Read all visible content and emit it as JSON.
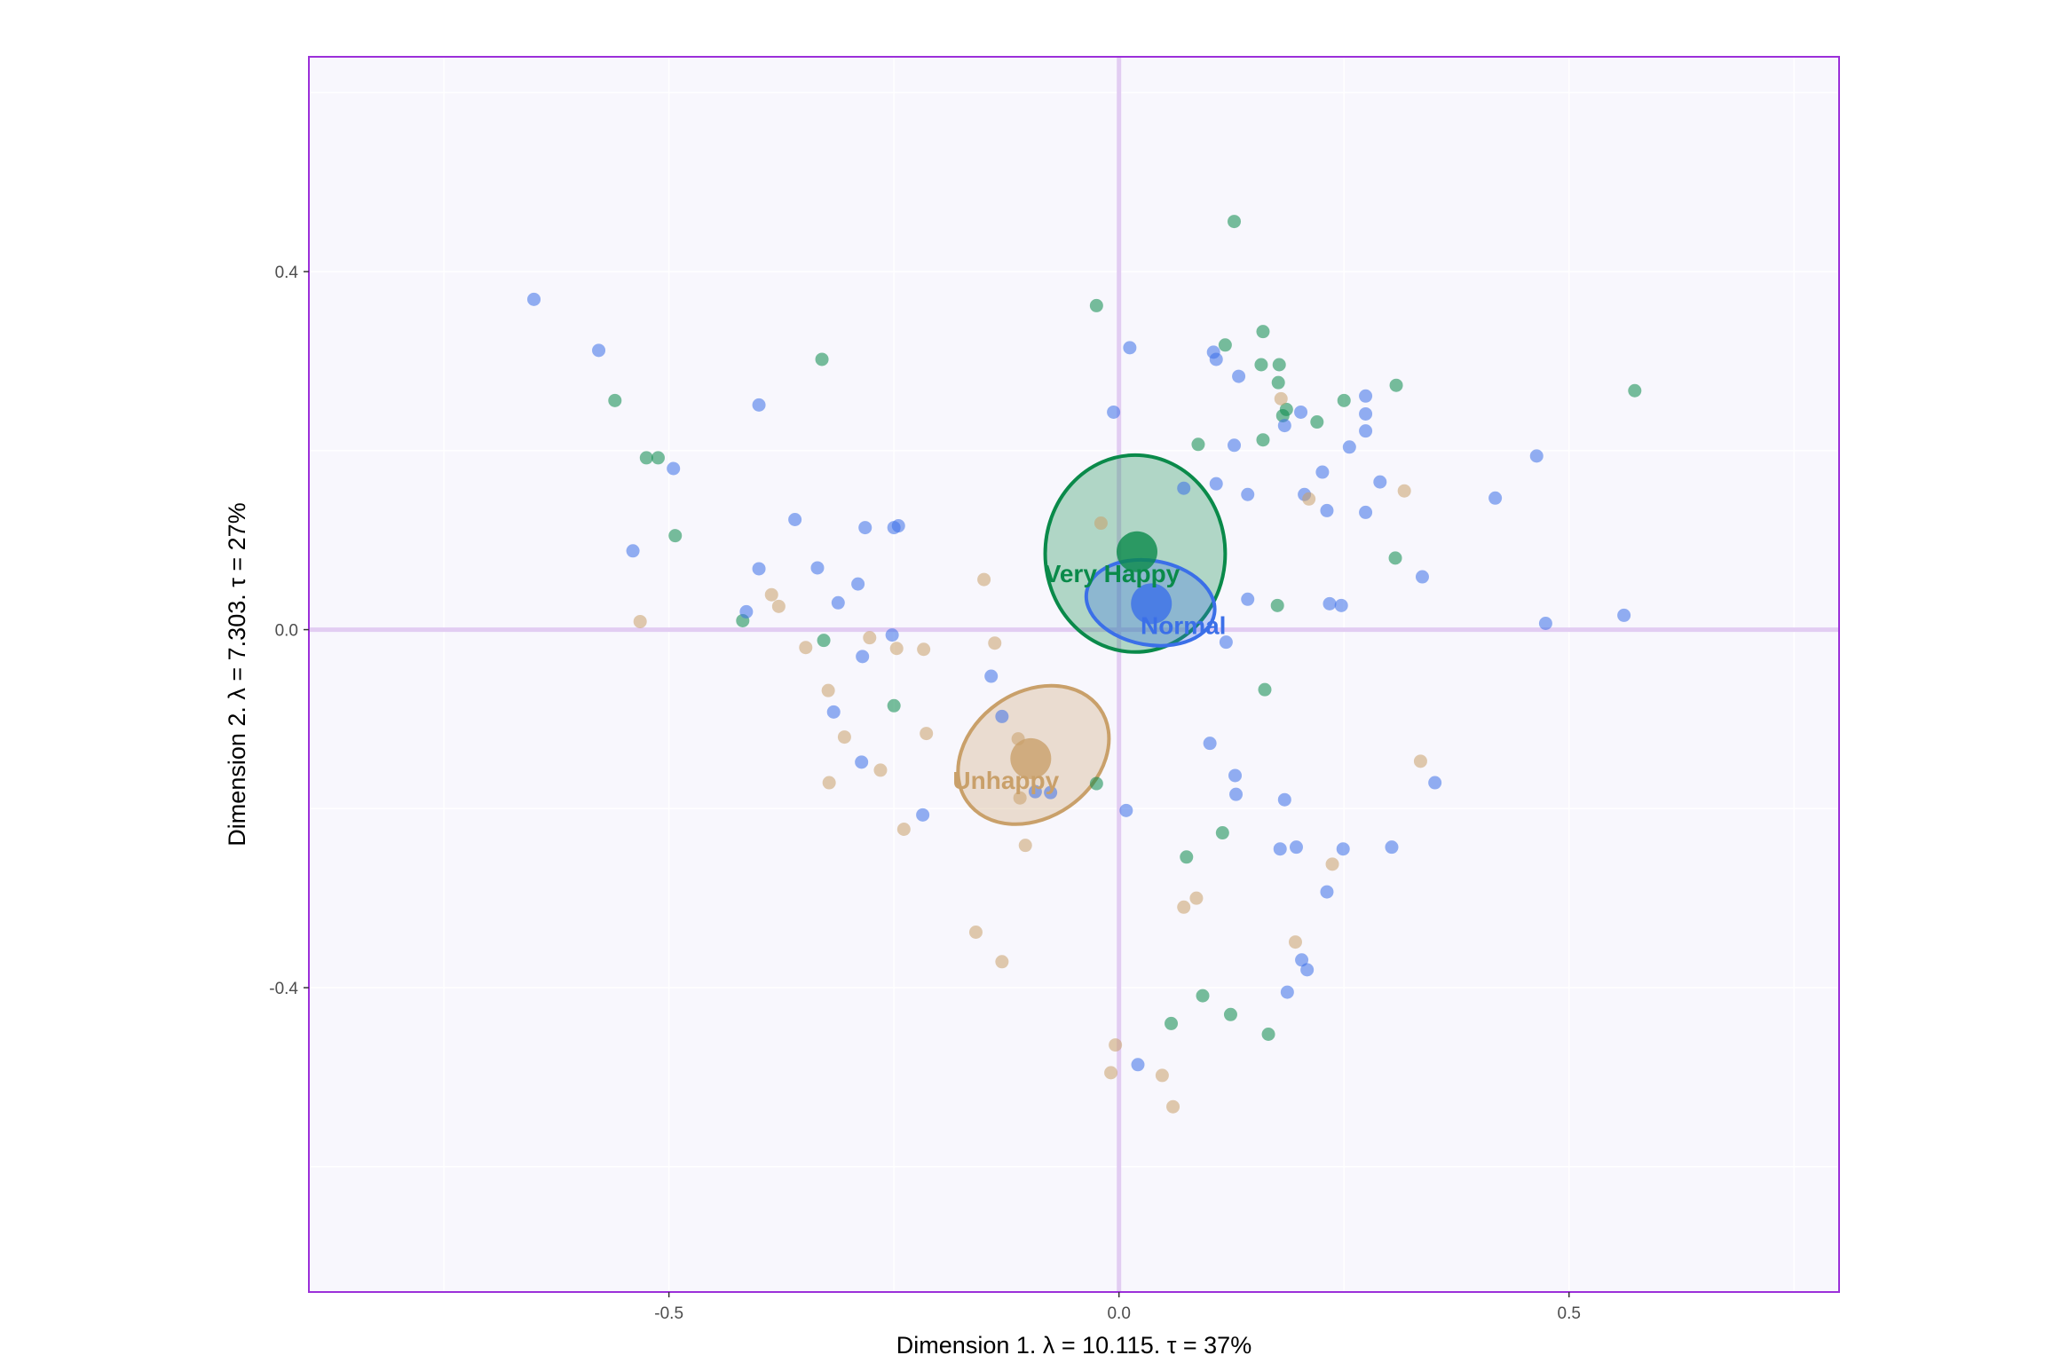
{
  "chart_data": {
    "type": "scatter",
    "title": "",
    "xlabel": "Dimension 1.   λ = 10.115.  τ = 37%",
    "ylabel": "Dimension 2.   λ = 7.303.  τ = 27%",
    "xlim": [
      -0.9,
      0.8
    ],
    "ylim": [
      -0.74,
      0.64
    ],
    "x_ticks": [
      {
        "value": -0.5,
        "label": "-0.5"
      },
      {
        "value": 0.0,
        "label": "0.0"
      },
      {
        "value": 0.5,
        "label": "0.5"
      }
    ],
    "y_ticks": [
      {
        "value": 0.4,
        "label": "0.4"
      },
      {
        "value": 0.0,
        "label": "0.0"
      },
      {
        "value": -0.4,
        "label": "-0.4"
      }
    ],
    "grid": true,
    "legend": "none",
    "colors": {
      "panel_background": "#f8f7fd",
      "panel_border": "#9b30d9",
      "zero_lines": "#e2cdf2",
      "grid": "#ffffff"
    },
    "series": [
      {
        "name": "Very Happy",
        "color": "#0a8a4a",
        "centroid": [
          0.02,
          0.087
        ],
        "ellipse": {
          "center": [
            0.018,
            0.085
          ],
          "rx": 0.1,
          "ry": 0.11,
          "angle": 0
        },
        "points": [
          [
            0.128,
            0.456
          ],
          [
            -0.025,
            0.362
          ],
          [
            0.16,
            0.333
          ],
          [
            0.118,
            0.318
          ],
          [
            -0.33,
            0.302
          ],
          [
            0.158,
            0.296
          ],
          [
            0.178,
            0.296
          ],
          [
            0.177,
            0.276
          ],
          [
            0.308,
            0.273
          ],
          [
            -0.56,
            0.256
          ],
          [
            0.25,
            0.256
          ],
          [
            0.186,
            0.246
          ],
          [
            0.182,
            0.239
          ],
          [
            0.573,
            0.267
          ],
          [
            0.22,
            0.232
          ],
          [
            0.16,
            0.212
          ],
          [
            0.088,
            0.207
          ],
          [
            -0.525,
            0.192
          ],
          [
            -0.512,
            0.192
          ],
          [
            -0.493,
            0.105
          ],
          [
            0.307,
            0.08
          ],
          [
            0.176,
            0.027
          ],
          [
            -0.418,
            0.01
          ],
          [
            -0.328,
            -0.012
          ],
          [
            0.162,
            -0.067
          ],
          [
            -0.25,
            -0.085
          ],
          [
            -0.025,
            -0.172
          ],
          [
            0.115,
            -0.227
          ],
          [
            0.075,
            -0.254
          ],
          [
            0.093,
            -0.409
          ],
          [
            0.124,
            -0.43
          ],
          [
            0.058,
            -0.44
          ],
          [
            0.166,
            -0.452
          ]
        ]
      },
      {
        "name": "Normal",
        "color": "#3b6fe8",
        "centroid": [
          0.036,
          0.029
        ],
        "ellipse": {
          "center": [
            0.035,
            0.03
          ],
          "rx": 0.072,
          "ry": 0.047,
          "angle": -10
        },
        "points": [
          [
            -0.65,
            0.369
          ],
          [
            -0.578,
            0.312
          ],
          [
            0.012,
            0.315
          ],
          [
            0.105,
            0.31
          ],
          [
            0.108,
            0.302
          ],
          [
            0.133,
            0.283
          ],
          [
            0.274,
            0.261
          ],
          [
            -0.4,
            0.251
          ],
          [
            -0.006,
            0.243
          ],
          [
            0.202,
            0.243
          ],
          [
            0.274,
            0.241
          ],
          [
            0.184,
            0.228
          ],
          [
            0.274,
            0.222
          ],
          [
            0.128,
            0.206
          ],
          [
            0.256,
            0.204
          ],
          [
            -0.495,
            0.18
          ],
          [
            0.464,
            0.194
          ],
          [
            0.226,
            0.176
          ],
          [
            0.29,
            0.165
          ],
          [
            0.108,
            0.163
          ],
          [
            0.072,
            0.158
          ],
          [
            0.206,
            0.151
          ],
          [
            0.143,
            0.151
          ],
          [
            0.418,
            0.147
          ],
          [
            0.231,
            0.133
          ],
          [
            0.274,
            0.131
          ],
          [
            -0.36,
            0.123
          ],
          [
            -0.282,
            0.114
          ],
          [
            -0.245,
            0.116
          ],
          [
            -0.25,
            0.114
          ],
          [
            -0.54,
            0.088
          ],
          [
            -0.4,
            0.068
          ],
          [
            -0.335,
            0.069
          ],
          [
            -0.29,
            0.051
          ],
          [
            0.337,
            0.059
          ],
          [
            -0.312,
            0.03
          ],
          [
            0.143,
            0.034
          ],
          [
            0.234,
            0.029
          ],
          [
            0.247,
            0.027
          ],
          [
            -0.414,
            0.02
          ],
          [
            0.561,
            0.016
          ],
          [
            0.474,
            0.007
          ],
          [
            -0.252,
            -0.006
          ],
          [
            0.119,
            -0.014
          ],
          [
            -0.285,
            -0.03
          ],
          [
            -0.142,
            -0.052
          ],
          [
            -0.317,
            -0.092
          ],
          [
            -0.13,
            -0.097
          ],
          [
            0.101,
            -0.127
          ],
          [
            -0.286,
            -0.148
          ],
          [
            0.129,
            -0.163
          ],
          [
            0.13,
            -0.184
          ],
          [
            0.351,
            -0.171
          ],
          [
            0.184,
            -0.19
          ],
          [
            -0.093,
            -0.181
          ],
          [
            -0.076,
            -0.182
          ],
          [
            0.008,
            -0.202
          ],
          [
            -0.218,
            -0.207
          ],
          [
            0.179,
            -0.245
          ],
          [
            0.197,
            -0.243
          ],
          [
            0.249,
            -0.245
          ],
          [
            0.303,
            -0.243
          ],
          [
            0.231,
            -0.293
          ],
          [
            0.203,
            -0.369
          ],
          [
            0.209,
            -0.38
          ],
          [
            0.187,
            -0.405
          ],
          [
            0.021,
            -0.486
          ]
        ]
      },
      {
        "name": "Unhappy",
        "color": "#c9a06a",
        "centroid": [
          -0.098,
          -0.144
        ],
        "ellipse": {
          "center": [
            -0.095,
            -0.14
          ],
          "rx": 0.09,
          "ry": 0.07,
          "angle": 35
        },
        "points": [
          [
            0.18,
            0.258
          ],
          [
            0.317,
            0.155
          ],
          [
            0.211,
            0.146
          ],
          [
            -0.02,
            0.119
          ],
          [
            -0.15,
            0.056
          ],
          [
            -0.386,
            0.039
          ],
          [
            -0.378,
            0.026
          ],
          [
            -0.532,
            0.009
          ],
          [
            -0.277,
            -0.009
          ],
          [
            -0.138,
            -0.015
          ],
          [
            -0.348,
            -0.02
          ],
          [
            -0.247,
            -0.021
          ],
          [
            -0.217,
            -0.022
          ],
          [
            -0.323,
            -0.068
          ],
          [
            -0.214,
            -0.116
          ],
          [
            -0.305,
            -0.12
          ],
          [
            -0.112,
            -0.122
          ],
          [
            -0.265,
            -0.157
          ],
          [
            0.335,
            -0.147
          ],
          [
            -0.322,
            -0.171
          ],
          [
            -0.11,
            -0.188
          ],
          [
            -0.239,
            -0.223
          ],
          [
            -0.104,
            -0.241
          ],
          [
            0.237,
            -0.262
          ],
          [
            0.086,
            -0.3
          ],
          [
            0.072,
            -0.31
          ],
          [
            0.196,
            -0.349
          ],
          [
            -0.159,
            -0.338
          ],
          [
            -0.13,
            -0.371
          ],
          [
            -0.004,
            -0.464
          ],
          [
            -0.009,
            -0.495
          ],
          [
            0.048,
            -0.498
          ],
          [
            0.06,
            -0.533
          ]
        ]
      }
    ]
  }
}
